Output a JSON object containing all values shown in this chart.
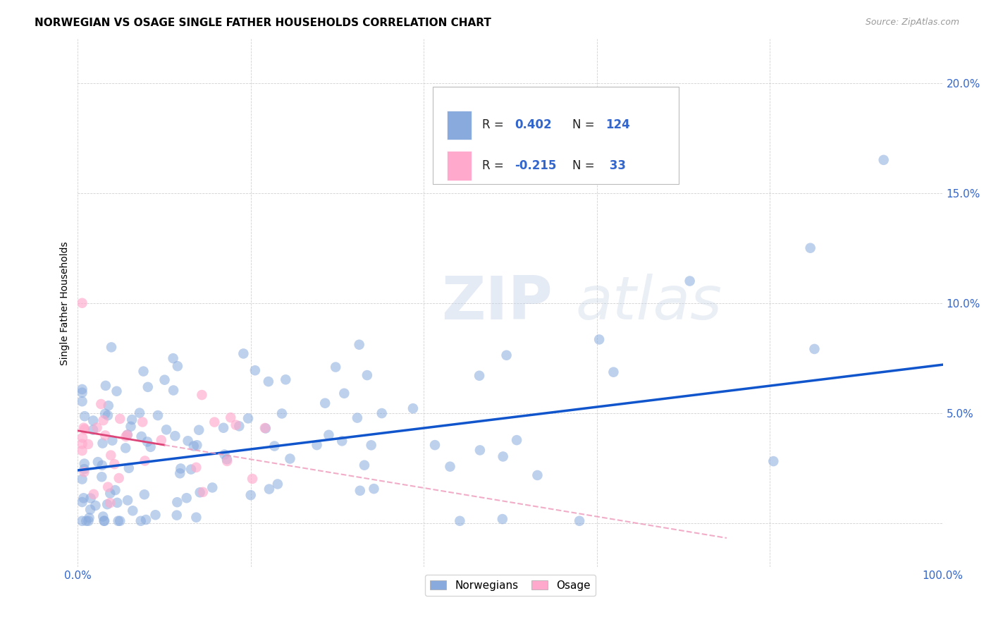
{
  "title": "NORWEGIAN VS OSAGE SINGLE FATHER HOUSEHOLDS CORRELATION CHART",
  "source": "Source: ZipAtlas.com",
  "ylabel": "Single Father Households",
  "xlim": [
    0,
    1.0
  ],
  "ylim": [
    -0.02,
    0.22
  ],
  "x_tick_positions": [
    0.0,
    0.2,
    0.4,
    0.6,
    0.8,
    1.0
  ],
  "x_tick_labels": [
    "0.0%",
    "",
    "",
    "",
    "",
    "100.0%"
  ],
  "y_tick_positions": [
    0.0,
    0.05,
    0.1,
    0.15,
    0.2
  ],
  "y_tick_labels": [
    "",
    "5.0%",
    "10.0%",
    "15.0%",
    "20.0%"
  ],
  "blue_color": "#88aadd",
  "pink_color": "#ffaacc",
  "blue_line_color": "#1155cc",
  "pink_line_solid_color": "#dd4477",
  "pink_line_dash_color": "#ee99bb",
  "background_color": "#ffffff",
  "grid_color": "#cccccc",
  "tick_color": "#3366cc",
  "title_fontsize": 11,
  "source_fontsize": 9,
  "tick_fontsize": 11,
  "legend_R1": "0.402",
  "legend_N1": "124",
  "legend_R2": "-0.215",
  "legend_N2": " 33",
  "watermark_zip": "ZIP",
  "watermark_atlas": "atlas",
  "blue_seed": 10,
  "pink_seed": 20
}
